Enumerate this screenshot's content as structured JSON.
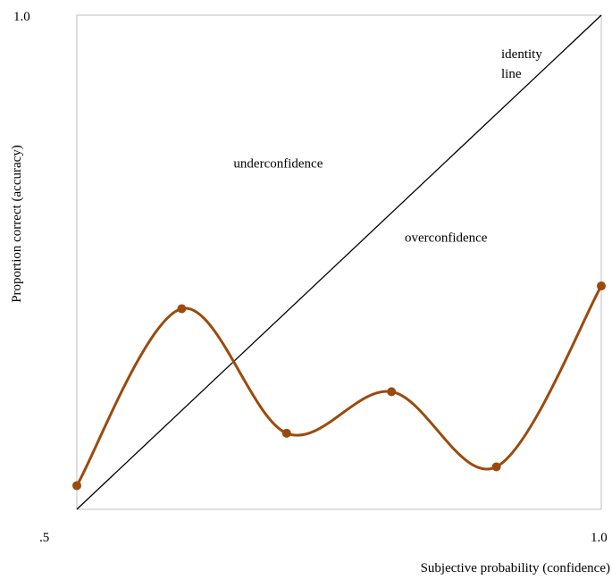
{
  "chart_data": {
    "type": "line",
    "title": "",
    "xlabel": "Subjective probability (confidence)",
    "ylabel": "Proportion correct (accuracy)",
    "xlim": [
      0.5,
      1.0
    ],
    "ylim": [
      0.5,
      1.0
    ],
    "x_tick_labels": [
      ".5",
      "1.0"
    ],
    "y_tick_labels": [
      "1.0"
    ],
    "grid": false,
    "series": [
      {
        "color": "#9C4A0C",
        "smooth": true,
        "markers": true,
        "x": [
          0.5,
          0.6,
          0.7,
          0.8,
          0.9,
          1.0
        ],
        "y": [
          0.524,
          0.703,
          0.577,
          0.619,
          0.543,
          0.726
        ]
      }
    ],
    "reference_line": {
      "x": [
        0.5,
        1.0
      ],
      "y": [
        0.5,
        1.0
      ],
      "color": "#000000",
      "label": [
        "identity",
        "line"
      ]
    },
    "annotations": [
      {
        "text": "underconfidence",
        "x": 0.692,
        "y": 0.846
      },
      {
        "text": "overconfidence",
        "x": 0.852,
        "y": 0.771
      }
    ]
  }
}
